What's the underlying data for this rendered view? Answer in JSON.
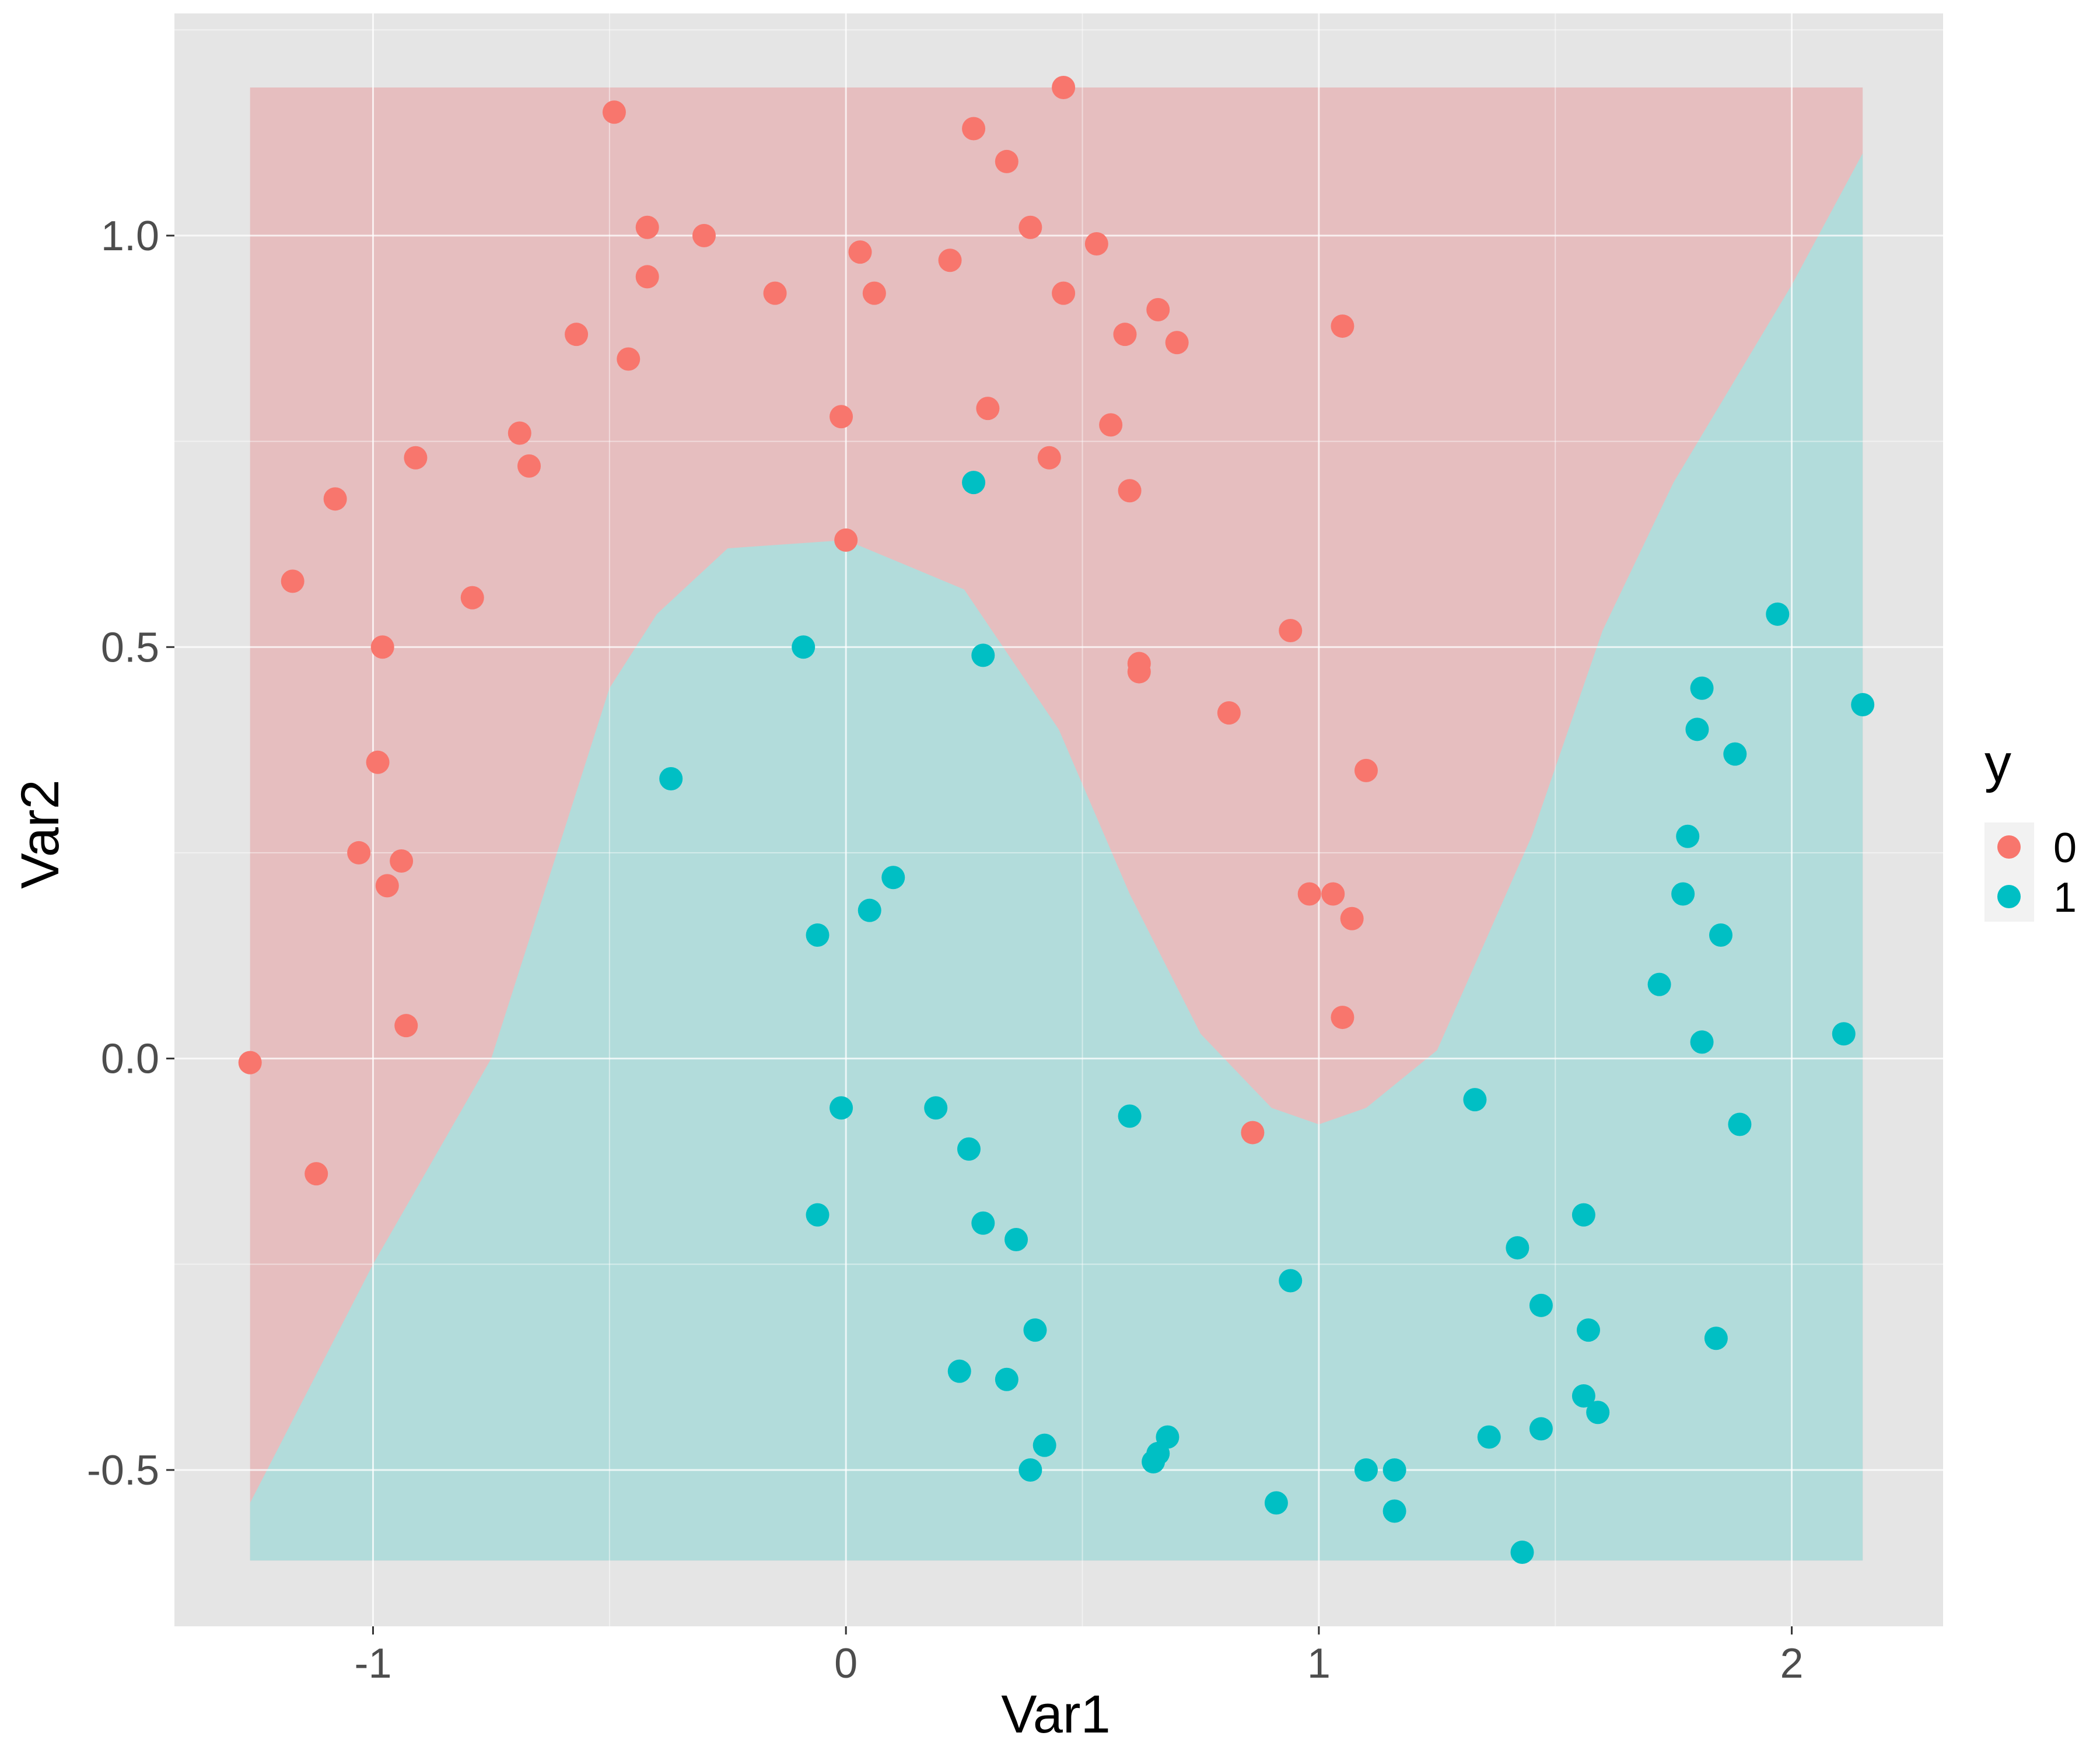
{
  "chart_data": {
    "type": "scatter",
    "title": "",
    "xlabel": "Var1",
    "ylabel": "Var2",
    "xlim": [
      -1.42,
      2.32
    ],
    "ylim": [
      -0.69,
      1.27
    ],
    "x_ticks": [
      -1,
      0,
      1,
      2
    ],
    "x_tick_labels": [
      "-1",
      "0",
      "1",
      "2"
    ],
    "y_ticks": [
      -0.5,
      0.0,
      0.5,
      1.0
    ],
    "y_tick_labels": [
      "-0.5",
      "0.0",
      "0.5",
      "1.0"
    ],
    "grid": true,
    "background_region": {
      "x_range": [
        -1.26,
        2.15
      ],
      "y_range": [
        -0.61,
        1.18
      ],
      "boundary_description": "decision boundary between class 0 (upper) and class 1 (lower)",
      "boundary_points": [
        [
          -1.26,
          -0.54
        ],
        [
          -1.0,
          -0.25
        ],
        [
          -0.75,
          0.0
        ],
        [
          -0.5,
          0.45
        ],
        [
          -0.4,
          0.54
        ],
        [
          -0.25,
          0.62
        ],
        [
          0.0,
          0.63
        ],
        [
          0.25,
          0.57
        ],
        [
          0.45,
          0.4
        ],
        [
          0.6,
          0.2
        ],
        [
          0.75,
          0.03
        ],
        [
          0.9,
          -0.06
        ],
        [
          1.0,
          -0.08
        ],
        [
          1.1,
          -0.06
        ],
        [
          1.25,
          0.01
        ],
        [
          1.45,
          0.27
        ],
        [
          1.6,
          0.52
        ],
        [
          1.75,
          0.7
        ],
        [
          2.0,
          0.94
        ],
        [
          2.15,
          1.1
        ]
      ]
    },
    "legend": {
      "title": "y",
      "placement": "right",
      "entries": [
        {
          "label": "0",
          "color": "#F8766D"
        },
        {
          "label": "1",
          "color": "#00BFC4"
        }
      ]
    },
    "colors": {
      "class0": "#F8766D",
      "class1": "#00BFC4",
      "region0": "#E6BEBF",
      "region1": "#B2DCDB",
      "panel": "#E5E5E5",
      "grid": "#FFFFFF"
    },
    "series": [
      {
        "name": "0",
        "points": [
          [
            -1.26,
            -0.005
          ],
          [
            -1.12,
            -0.14
          ],
          [
            -1.17,
            0.58
          ],
          [
            -1.08,
            0.68
          ],
          [
            -0.98,
            0.5
          ],
          [
            -0.99,
            0.36
          ],
          [
            -1.03,
            0.25
          ],
          [
            -0.97,
            0.21
          ],
          [
            -0.94,
            0.24
          ],
          [
            -0.93,
            0.04
          ],
          [
            -0.91,
            0.73
          ],
          [
            -0.79,
            0.56
          ],
          [
            -0.67,
            0.72
          ],
          [
            -0.69,
            0.76
          ],
          [
            -0.57,
            0.88
          ],
          [
            -0.49,
            1.15
          ],
          [
            -0.46,
            0.85
          ],
          [
            -0.42,
            1.01
          ],
          [
            -0.42,
            0.95
          ],
          [
            -0.3,
            1.0
          ],
          [
            -0.15,
            0.93
          ],
          [
            -0.01,
            0.78
          ],
          [
            0.0,
            0.63
          ],
          [
            0.03,
            0.98
          ],
          [
            0.06,
            0.93
          ],
          [
            0.22,
            0.97
          ],
          [
            0.27,
            1.13
          ],
          [
            0.3,
            0.79
          ],
          [
            0.34,
            1.09
          ],
          [
            0.39,
            1.01
          ],
          [
            0.43,
            0.73
          ],
          [
            0.46,
            0.93
          ],
          [
            0.46,
            1.18
          ],
          [
            0.53,
            0.99
          ],
          [
            0.56,
            0.77
          ],
          [
            0.59,
            0.88
          ],
          [
            0.6,
            0.69
          ],
          [
            0.62,
            0.48
          ],
          [
            0.62,
            0.47
          ],
          [
            0.66,
            0.91
          ],
          [
            0.7,
            0.87
          ],
          [
            0.81,
            0.42
          ],
          [
            0.86,
            -0.09
          ],
          [
            0.94,
            0.52
          ],
          [
            0.98,
            0.2
          ],
          [
            1.03,
            0.2
          ],
          [
            1.05,
            0.05
          ],
          [
            1.05,
            0.89
          ],
          [
            1.07,
            0.17
          ],
          [
            1.1,
            0.35
          ]
        ]
      },
      {
        "name": "1",
        "points": [
          [
            -0.37,
            0.34
          ],
          [
            -0.09,
            0.5
          ],
          [
            -0.06,
            0.15
          ],
          [
            -0.06,
            -0.19
          ],
          [
            -0.01,
            -0.06
          ],
          [
            0.05,
            0.18
          ],
          [
            0.1,
            0.22
          ],
          [
            0.19,
            -0.06
          ],
          [
            0.24,
            -0.38
          ],
          [
            0.26,
            -0.11
          ],
          [
            0.27,
            0.7
          ],
          [
            0.29,
            0.49
          ],
          [
            0.29,
            -0.2
          ],
          [
            0.34,
            -0.39
          ],
          [
            0.36,
            -0.22
          ],
          [
            0.39,
            -0.5
          ],
          [
            0.4,
            -0.33
          ],
          [
            0.42,
            -0.47
          ],
          [
            0.6,
            -0.07
          ],
          [
            0.65,
            -0.49
          ],
          [
            0.66,
            -0.48
          ],
          [
            0.68,
            -0.46
          ],
          [
            0.91,
            -0.54
          ],
          [
            0.94,
            -0.27
          ],
          [
            1.1,
            -0.5
          ],
          [
            1.16,
            -0.5
          ],
          [
            1.16,
            -0.55
          ],
          [
            1.33,
            -0.05
          ],
          [
            1.36,
            -0.46
          ],
          [
            1.42,
            -0.23
          ],
          [
            1.43,
            -0.6
          ],
          [
            1.47,
            -0.3
          ],
          [
            1.47,
            -0.45
          ],
          [
            1.56,
            -0.19
          ],
          [
            1.56,
            -0.41
          ],
          [
            1.57,
            -0.33
          ],
          [
            1.59,
            -0.43
          ],
          [
            1.72,
            0.09
          ],
          [
            1.77,
            0.2
          ],
          [
            1.78,
            0.27
          ],
          [
            1.8,
            0.4
          ],
          [
            1.81,
            0.02
          ],
          [
            1.81,
            0.45
          ],
          [
            1.84,
            -0.34
          ],
          [
            1.85,
            0.15
          ],
          [
            1.88,
            0.37
          ],
          [
            1.89,
            -0.08
          ],
          [
            1.97,
            0.54
          ],
          [
            2.11,
            0.03
          ],
          [
            2.15,
            0.43
          ]
        ]
      }
    ]
  }
}
